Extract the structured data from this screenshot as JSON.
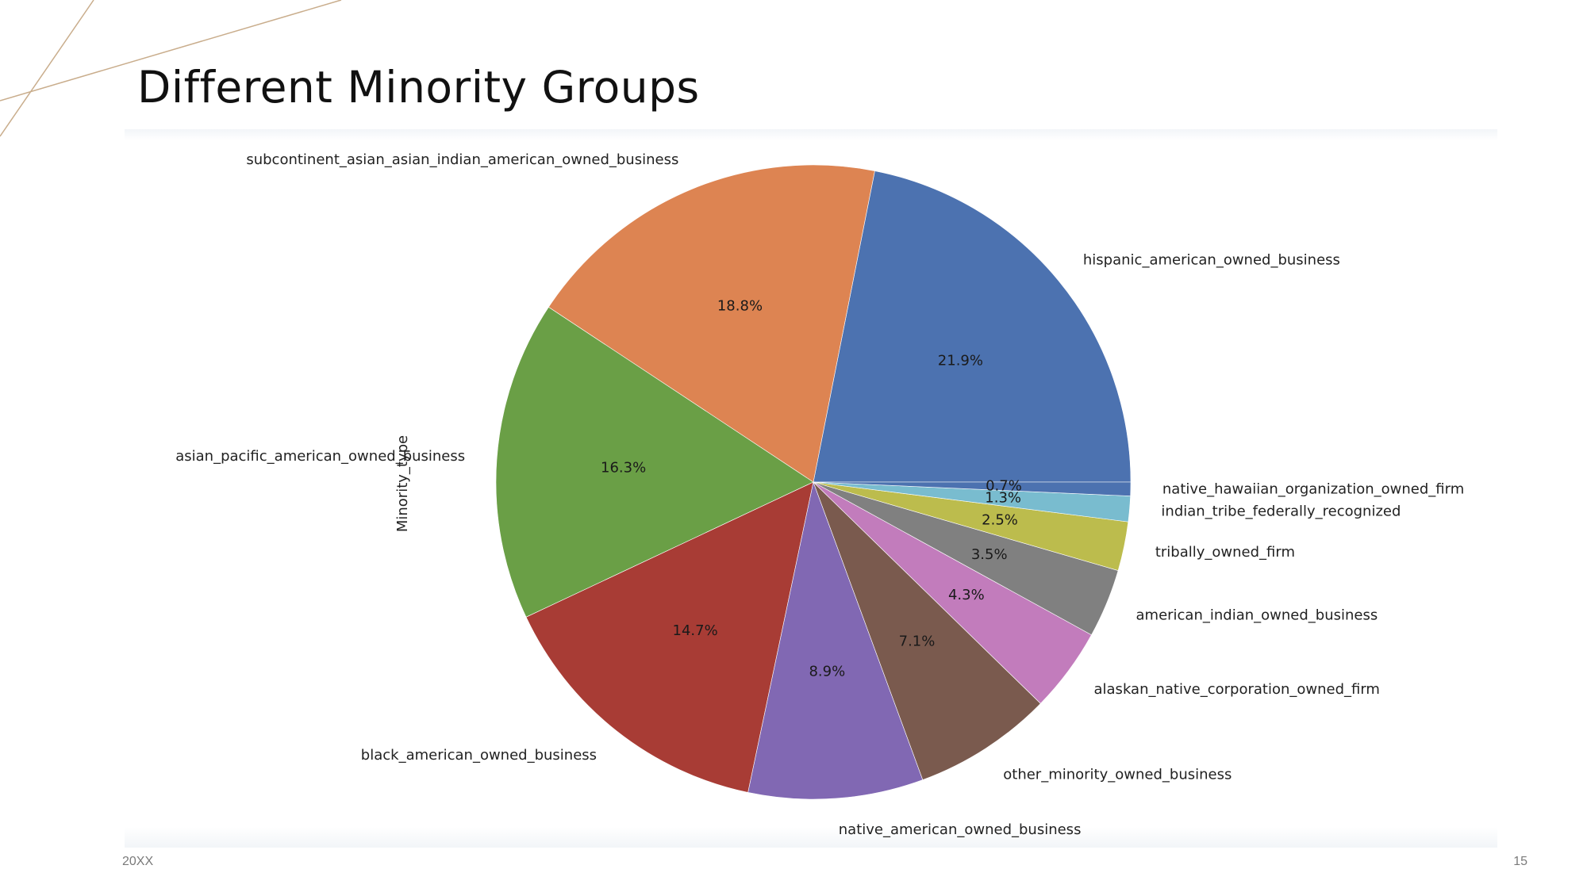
{
  "slide": {
    "title": "Different Minority Groups",
    "footer_left": "20XX",
    "page_number": "15",
    "accent_line_color": "#c9ad8c"
  },
  "chart_data": {
    "type": "pie",
    "ylabel": "Minority_type",
    "start_angle_deg": 0,
    "direction": "counterclockwise",
    "slices": [
      {
        "label": "hispanic_american_owned_business",
        "pct_label": "21.9%",
        "value": 21.9,
        "color": "#4c72b0"
      },
      {
        "label": "subcontinent_asian_asian_indian_american_owned_business",
        "pct_label": "18.8%",
        "value": 18.8,
        "color": "#dd8452"
      },
      {
        "label": "asian_pacific_american_owned_business",
        "pct_label": "16.3%",
        "value": 16.3,
        "color": "#6a9f46"
      },
      {
        "label": "black_american_owned_business",
        "pct_label": "14.7%",
        "value": 14.7,
        "color": "#a83c35"
      },
      {
        "label": "native_american_owned_business",
        "pct_label": "8.9%",
        "value": 8.9,
        "color": "#8168b3"
      },
      {
        "label": "other_minority_owned_business",
        "pct_label": "7.1%",
        "value": 7.1,
        "color": "#7a5a4e"
      },
      {
        "label": "alaskan_native_corporation_owned_firm",
        "pct_label": "4.3%",
        "value": 4.3,
        "color": "#c27cbc"
      },
      {
        "label": "american_indian_owned_business",
        "pct_label": "3.5%",
        "value": 3.5,
        "color": "#808080"
      },
      {
        "label": "tribally_owned_firm",
        "pct_label": "2.5%",
        "value": 2.5,
        "color": "#bcbc4d"
      },
      {
        "label": "indian_tribe_federally_recognized",
        "pct_label": "1.3%",
        "value": 1.3,
        "color": "#79bccf"
      },
      {
        "label": "native_hawaiian_organization_owned_firm",
        "pct_label": "0.7%",
        "value": 0.7,
        "color": "#4c72b0"
      }
    ]
  }
}
